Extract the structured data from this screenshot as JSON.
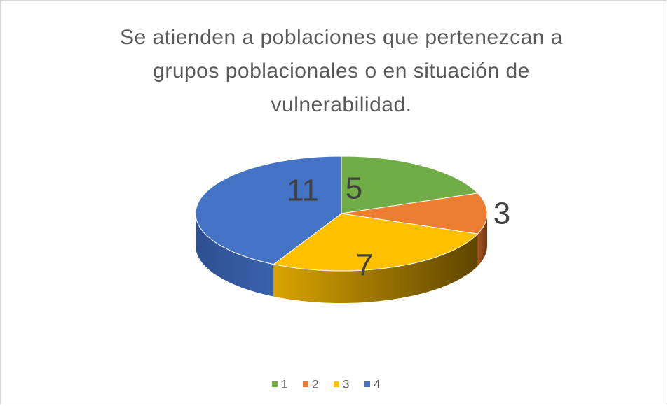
{
  "chart_data": {
    "type": "pie",
    "title": "Se atienden a poblaciones que pertenezcan a grupos poblacionales o en situación de vulnerabilidad.",
    "categories": [
      "1",
      "2",
      "3",
      "4"
    ],
    "values": [
      5,
      3,
      7,
      11
    ],
    "colors": [
      "#70ad47",
      "#ed7d31",
      "#ffc000",
      "#4472c4"
    ],
    "legend": "bottom"
  }
}
